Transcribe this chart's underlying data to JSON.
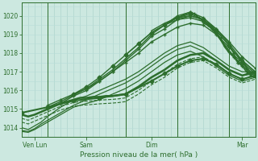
{
  "xlabel": "Pression niveau de la mer( hPa )",
  "ylim": [
    1013.5,
    1020.7
  ],
  "yticks": [
    1014,
    1015,
    1016,
    1017,
    1018,
    1019,
    1020
  ],
  "bg_color": "#cce8e0",
  "grid_color_v": "#a8cfc8",
  "grid_color_h": "#b8ddd8",
  "line_color": "#2d6e2d",
  "total_hours": 216,
  "day_dividers": [
    24,
    96,
    144,
    192
  ],
  "xtick_positions": [
    12,
    60,
    120,
    204
  ],
  "xtick_labels": [
    "Ven Lun",
    "Sam",
    "Dim",
    "Mar"
  ],
  "lines": [
    {
      "x": [
        0,
        6,
        12,
        18,
        24,
        30,
        36,
        42,
        48,
        60,
        72,
        84,
        96,
        108,
        120,
        132,
        144,
        156,
        168,
        180,
        192,
        204,
        216
      ],
      "y": [
        1013.8,
        1013.75,
        1013.9,
        1014.1,
        1014.3,
        1014.5,
        1014.7,
        1014.9,
        1015.1,
        1015.3,
        1015.5,
        1015.8,
        1016.1,
        1016.5,
        1017.0,
        1017.5,
        1017.9,
        1018.1,
        1017.8,
        1017.3,
        1016.8,
        1016.5,
        1016.7
      ],
      "style": "solid",
      "lw": 0.9
    },
    {
      "x": [
        0,
        6,
        12,
        18,
        24,
        30,
        36,
        42,
        48,
        60,
        72,
        84,
        96,
        108,
        120,
        132,
        144,
        156,
        168,
        180,
        192,
        204,
        216
      ],
      "y": [
        1013.85,
        1013.8,
        1013.95,
        1014.2,
        1014.4,
        1014.6,
        1014.8,
        1015.0,
        1015.2,
        1015.5,
        1015.8,
        1016.1,
        1016.4,
        1016.8,
        1017.3,
        1017.8,
        1018.2,
        1018.4,
        1018.1,
        1017.6,
        1017.1,
        1016.8,
        1016.9
      ],
      "style": "solid",
      "lw": 0.9
    },
    {
      "x": [
        0,
        6,
        12,
        18,
        24,
        30,
        36,
        42,
        48,
        60,
        72,
        84,
        96,
        108,
        120,
        132,
        144,
        156,
        168,
        180,
        192,
        204,
        216
      ],
      "y": [
        1014.0,
        1013.9,
        1014.1,
        1014.3,
        1014.6,
        1014.85,
        1015.1,
        1015.3,
        1015.5,
        1015.7,
        1016.0,
        1016.3,
        1016.6,
        1017.0,
        1017.5,
        1018.0,
        1018.4,
        1018.6,
        1018.3,
        1017.8,
        1017.3,
        1017.0,
        1017.0
      ],
      "style": "solid",
      "lw": 0.9
    },
    {
      "x": [
        0,
        6,
        12,
        18,
        24,
        30,
        36,
        42,
        48,
        54,
        60,
        66,
        72,
        78,
        84,
        90,
        96,
        108,
        120,
        132,
        144,
        156,
        168,
        180,
        192,
        204,
        216
      ],
      "y": [
        1014.7,
        1014.6,
        1014.7,
        1014.85,
        1015.0,
        1015.15,
        1015.3,
        1015.4,
        1015.5,
        1015.6,
        1015.6,
        1015.65,
        1015.65,
        1015.7,
        1015.7,
        1015.75,
        1015.8,
        1016.2,
        1016.7,
        1017.1,
        1017.6,
        1017.9,
        1018.0,
        1017.6,
        1017.1,
        1016.8,
        1017.0
      ],
      "style": "solid",
      "lw": 1.8
    },
    {
      "x": [
        0,
        6,
        12,
        18,
        24,
        30,
        36,
        42,
        48,
        54,
        60,
        66,
        72,
        78,
        84,
        90,
        96,
        108,
        120,
        132,
        144,
        156,
        168,
        180,
        192,
        204,
        216
      ],
      "y": [
        1014.5,
        1014.4,
        1014.55,
        1014.7,
        1014.85,
        1015.0,
        1015.15,
        1015.25,
        1015.35,
        1015.4,
        1015.42,
        1015.45,
        1015.48,
        1015.5,
        1015.52,
        1015.55,
        1015.6,
        1016.0,
        1016.5,
        1016.9,
        1017.4,
        1017.7,
        1017.8,
        1017.4,
        1016.9,
        1016.6,
        1016.8
      ],
      "style": "dashed",
      "lw": 0.8
    },
    {
      "x": [
        0,
        6,
        12,
        18,
        24,
        30,
        36,
        42,
        48,
        54,
        60,
        66,
        72,
        78,
        84,
        90,
        96,
        108,
        120,
        132,
        144,
        156,
        168,
        180,
        192,
        204,
        216
      ],
      "y": [
        1014.3,
        1014.2,
        1014.35,
        1014.5,
        1014.65,
        1014.8,
        1014.95,
        1015.05,
        1015.15,
        1015.2,
        1015.22,
        1015.25,
        1015.28,
        1015.3,
        1015.32,
        1015.35,
        1015.4,
        1015.8,
        1016.3,
        1016.7,
        1017.2,
        1017.5,
        1017.6,
        1017.2,
        1016.7,
        1016.4,
        1016.6
      ],
      "style": "dashed",
      "lw": 0.8
    },
    {
      "x": [
        0,
        24,
        48,
        72,
        96,
        120,
        132,
        144,
        156,
        168,
        180,
        192,
        204,
        216
      ],
      "y": [
        1014.8,
        1015.1,
        1015.45,
        1015.6,
        1015.8,
        1016.5,
        1016.9,
        1017.3,
        1017.6,
        1017.7,
        1017.4,
        1016.9,
        1016.6,
        1016.8
      ],
      "style": "solid",
      "lw": 1.5,
      "marker": "D",
      "ms": 2.5
    },
    {
      "x": [
        24,
        36,
        48,
        60,
        72,
        84,
        96,
        108,
        120,
        132,
        144,
        156,
        168,
        180,
        192,
        204,
        216
      ],
      "y": [
        1015.2,
        1015.5,
        1015.8,
        1016.1,
        1016.5,
        1017.0,
        1017.5,
        1018.0,
        1018.6,
        1019.0,
        1019.4,
        1019.6,
        1019.5,
        1019.0,
        1018.3,
        1017.6,
        1017.0
      ],
      "style": "solid",
      "lw": 1.0,
      "marker": "+",
      "ms": 3.0
    },
    {
      "x": [
        24,
        36,
        48,
        60,
        72,
        84,
        96,
        108,
        120,
        132,
        144,
        156,
        168,
        180,
        192,
        204,
        216
      ],
      "y": [
        1015.0,
        1015.3,
        1015.7,
        1016.0,
        1016.5,
        1017.0,
        1017.6,
        1018.2,
        1018.9,
        1019.3,
        1019.8,
        1020.0,
        1019.8,
        1019.3,
        1018.6,
        1017.8,
        1017.2
      ],
      "style": "solid",
      "lw": 1.0,
      "marker": "+",
      "ms": 3.0
    },
    {
      "x": [
        24,
        36,
        48,
        60,
        72,
        84,
        96,
        108,
        120,
        132,
        144,
        156,
        168,
        180,
        192,
        204,
        216
      ],
      "y": [
        1015.1,
        1015.4,
        1015.75,
        1016.1,
        1016.6,
        1017.1,
        1017.7,
        1018.3,
        1019.0,
        1019.5,
        1020.0,
        1020.2,
        1019.9,
        1019.3,
        1018.5,
        1017.6,
        1017.0
      ],
      "style": "solid",
      "lw": 1.0,
      "marker": "+",
      "ms": 3.0
    },
    {
      "x": [
        48,
        60,
        72,
        84,
        96,
        108,
        120,
        132,
        144,
        156,
        168,
        180,
        192,
        204,
        216
      ],
      "y": [
        1015.8,
        1016.2,
        1016.7,
        1017.3,
        1017.9,
        1018.5,
        1019.1,
        1019.5,
        1019.9,
        1020.1,
        1019.8,
        1019.2,
        1018.4,
        1017.5,
        1016.9
      ],
      "style": "solid",
      "lw": 1.0,
      "marker": "D",
      "ms": 2.5
    },
    {
      "x": [
        96,
        108,
        120,
        132,
        144,
        156,
        168,
        180,
        192,
        196,
        200,
        204,
        208,
        212,
        216
      ],
      "y": [
        1017.9,
        1018.5,
        1019.1,
        1019.5,
        1019.8,
        1019.9,
        1019.7,
        1019.2,
        1018.4,
        1018.0,
        1017.5,
        1017.8,
        1017.2,
        1016.9,
        1016.8
      ],
      "style": "solid",
      "lw": 1.0,
      "marker": "+",
      "ms": 3.0
    },
    {
      "x": [
        120,
        132,
        144,
        156,
        168,
        172,
        176,
        180,
        184,
        188,
        192,
        196,
        200,
        204,
        208,
        212,
        216
      ],
      "y": [
        1019.2,
        1019.6,
        1019.9,
        1020.0,
        1019.8,
        1019.6,
        1019.4,
        1019.1,
        1018.7,
        1018.3,
        1018.0,
        1017.8,
        1017.6,
        1017.4,
        1017.1,
        1016.8,
        1016.7
      ],
      "style": "solid",
      "lw": 1.0
    },
    {
      "x": [
        144,
        156,
        160,
        164,
        168,
        172,
        176,
        180,
        184,
        188,
        192,
        196,
        200,
        204,
        208,
        212,
        216
      ],
      "y": [
        1019.9,
        1020.2,
        1020.1,
        1019.9,
        1019.7,
        1019.5,
        1019.3,
        1019.1,
        1018.8,
        1018.4,
        1018.1,
        1017.8,
        1017.5,
        1017.3,
        1017.0,
        1016.8,
        1016.7
      ],
      "style": "solid",
      "lw": 1.2,
      "marker": "+",
      "ms": 3.0
    },
    {
      "x": [
        168,
        172,
        176,
        180,
        184,
        188,
        192,
        196,
        200,
        204,
        208,
        212,
        216
      ],
      "y": [
        1019.6,
        1019.5,
        1019.3,
        1019.0,
        1018.7,
        1018.4,
        1018.1,
        1017.9,
        1017.7,
        1017.5,
        1017.2,
        1017.0,
        1016.9
      ],
      "style": "solid",
      "lw": 1.0
    }
  ]
}
